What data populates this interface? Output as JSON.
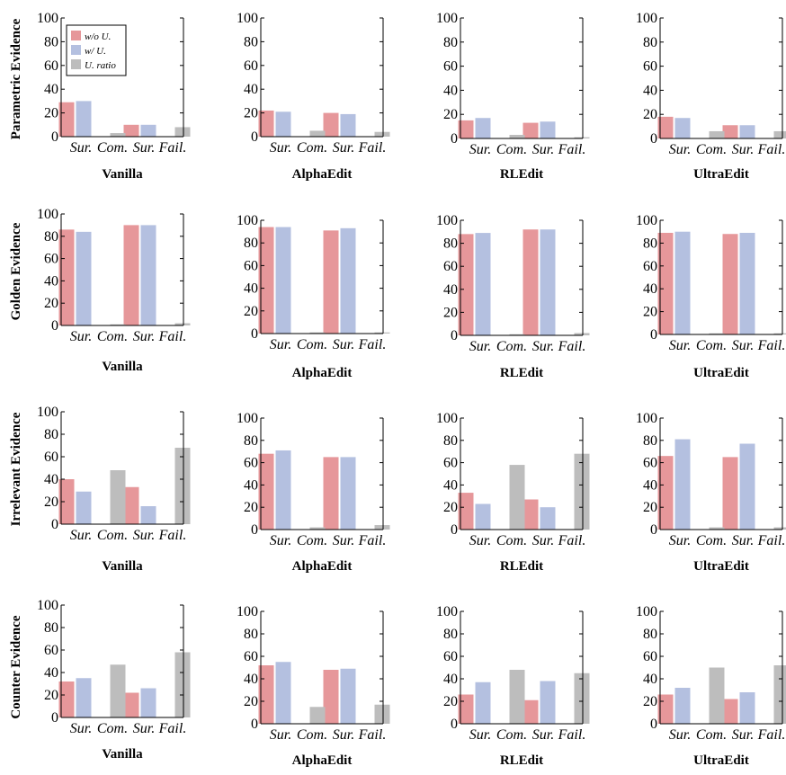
{
  "figure": {
    "rows": [
      "Parametric Evidence",
      "Golden Evidence",
      "Irrelevant Evidence",
      "Counter Evidence"
    ],
    "columns": [
      "Vanilla",
      "AlphaEdit",
      "RLEdit",
      "UltraEdit"
    ]
  },
  "legend": {
    "placement": "top-left",
    "items": [
      {
        "label": "w/o U.",
        "color": "#e6979a"
      },
      {
        "label": "w/ U.",
        "color": "#b4c0e0"
      },
      {
        "label": "U. ratio",
        "color": "#bdbdbd"
      }
    ]
  },
  "chart_data": [
    {
      "type": "bar",
      "row": "Parametric Evidence",
      "title": "Vanilla",
      "categories": [
        "Sur.",
        "Com.",
        "Sur.",
        "Fail."
      ],
      "ylim": [
        0,
        100
      ],
      "yticks": [
        0,
        20,
        40,
        60,
        80,
        100
      ],
      "series": [
        {
          "name": "w/o U.",
          "values": [
            29,
            0,
            10,
            0
          ]
        },
        {
          "name": "w/ U.",
          "values": [
            30,
            0,
            10,
            0
          ]
        },
        {
          "name": "U. ratio",
          "values": [
            0,
            3,
            0,
            8
          ]
        }
      ]
    },
    {
      "type": "bar",
      "row": "Parametric Evidence",
      "title": "AlphaEdit",
      "categories": [
        "Sur.",
        "Com.",
        "Sur.",
        "Fail."
      ],
      "ylim": [
        0,
        100
      ],
      "yticks": [
        0,
        20,
        40,
        60,
        80,
        100
      ],
      "series": [
        {
          "name": "w/o U.",
          "values": [
            22,
            0,
            20,
            0
          ]
        },
        {
          "name": "w/ U.",
          "values": [
            21,
            0,
            19,
            0
          ]
        },
        {
          "name": "U. ratio",
          "values": [
            0,
            5,
            0,
            4
          ]
        }
      ]
    },
    {
      "type": "bar",
      "row": "Parametric Evidence",
      "title": "RLEdit",
      "categories": [
        "Sur.",
        "Com.",
        "Sur.",
        "Fail."
      ],
      "ylim": [
        0,
        100
      ],
      "yticks": [
        0,
        20,
        40,
        60,
        80,
        100
      ],
      "series": [
        {
          "name": "w/o U.",
          "values": [
            15,
            0,
            13,
            0
          ]
        },
        {
          "name": "w/ U.",
          "values": [
            17,
            0,
            14,
            0
          ]
        },
        {
          "name": "U. ratio",
          "values": [
            0,
            3,
            0,
            1
          ]
        }
      ]
    },
    {
      "type": "bar",
      "row": "Parametric Evidence",
      "title": "UltraEdit",
      "categories": [
        "Sur.",
        "Com.",
        "Sur.",
        "Fail."
      ],
      "ylim": [
        0,
        100
      ],
      "yticks": [
        0,
        20,
        40,
        60,
        80,
        100
      ],
      "series": [
        {
          "name": "w/o U.",
          "values": [
            18,
            0,
            11,
            0
          ]
        },
        {
          "name": "w/ U.",
          "values": [
            17,
            0,
            11,
            0
          ]
        },
        {
          "name": "U. ratio",
          "values": [
            0,
            6,
            0,
            6
          ]
        }
      ]
    },
    {
      "type": "bar",
      "row": "Golden Evidence",
      "title": "Vanilla",
      "categories": [
        "Sur.",
        "Com.",
        "Sur.",
        "Fail."
      ],
      "ylim": [
        0,
        100
      ],
      "yticks": [
        0,
        20,
        40,
        60,
        80,
        100
      ],
      "series": [
        {
          "name": "w/o U.",
          "values": [
            86,
            0,
            90,
            0
          ]
        },
        {
          "name": "w/ U.",
          "values": [
            84,
            0,
            90,
            0
          ]
        },
        {
          "name": "U. ratio",
          "values": [
            0,
            1,
            0,
            2
          ]
        }
      ]
    },
    {
      "type": "bar",
      "row": "Golden Evidence",
      "title": "AlphaEdit",
      "categories": [
        "Sur.",
        "Com.",
        "Sur.",
        "Fail."
      ],
      "ylim": [
        0,
        100
      ],
      "yticks": [
        0,
        20,
        40,
        60,
        80,
        100
      ],
      "series": [
        {
          "name": "w/o U.",
          "values": [
            94,
            0,
            91,
            0
          ]
        },
        {
          "name": "w/ U.",
          "values": [
            94,
            0,
            93,
            0
          ]
        },
        {
          "name": "U. ratio",
          "values": [
            0,
            1,
            0,
            1
          ]
        }
      ]
    },
    {
      "type": "bar",
      "row": "Golden Evidence",
      "title": "RLEdit",
      "categories": [
        "Sur.",
        "Com.",
        "Sur.",
        "Fail."
      ],
      "ylim": [
        0,
        100
      ],
      "yticks": [
        0,
        20,
        40,
        60,
        80,
        100
      ],
      "series": [
        {
          "name": "w/o U.",
          "values": [
            88,
            0,
            92,
            0
          ]
        },
        {
          "name": "w/ U.",
          "values": [
            89,
            0,
            92,
            0
          ]
        },
        {
          "name": "U. ratio",
          "values": [
            0,
            1,
            0,
            2
          ]
        }
      ]
    },
    {
      "type": "bar",
      "row": "Golden Evidence",
      "title": "UltraEdit",
      "categories": [
        "Sur.",
        "Com.",
        "Sur.",
        "Fail."
      ],
      "ylim": [
        0,
        100
      ],
      "yticks": [
        0,
        20,
        40,
        60,
        80,
        100
      ],
      "series": [
        {
          "name": "w/o U.",
          "values": [
            89,
            0,
            88,
            0
          ]
        },
        {
          "name": "w/ U.",
          "values": [
            90,
            0,
            89,
            0
          ]
        },
        {
          "name": "U. ratio",
          "values": [
            0,
            1,
            0,
            1
          ]
        }
      ]
    },
    {
      "type": "bar",
      "row": "Irrelevant Evidence",
      "title": "Vanilla",
      "categories": [
        "Sur.",
        "Com.",
        "Sur.",
        "Fail."
      ],
      "ylim": [
        0,
        100
      ],
      "yticks": [
        0,
        20,
        40,
        60,
        80,
        100
      ],
      "series": [
        {
          "name": "w/o U.",
          "values": [
            40,
            0,
            33,
            0
          ]
        },
        {
          "name": "w/ U.",
          "values": [
            29,
            0,
            16,
            0
          ]
        },
        {
          "name": "U. ratio",
          "values": [
            0,
            48,
            0,
            68
          ]
        }
      ]
    },
    {
      "type": "bar",
      "row": "Irrelevant Evidence",
      "title": "AlphaEdit",
      "categories": [
        "Sur.",
        "Com.",
        "Sur.",
        "Fail."
      ],
      "ylim": [
        0,
        100
      ],
      "yticks": [
        0,
        20,
        40,
        60,
        80,
        100
      ],
      "series": [
        {
          "name": "w/o U.",
          "values": [
            68,
            0,
            65,
            0
          ]
        },
        {
          "name": "w/ U.",
          "values": [
            71,
            0,
            65,
            0
          ]
        },
        {
          "name": "U. ratio",
          "values": [
            0,
            2,
            0,
            4
          ]
        }
      ]
    },
    {
      "type": "bar",
      "row": "Irrelevant Evidence",
      "title": "RLEdit",
      "categories": [
        "Sur.",
        "Com.",
        "Sur.",
        "Fail."
      ],
      "ylim": [
        0,
        100
      ],
      "yticks": [
        0,
        20,
        40,
        60,
        80,
        100
      ],
      "series": [
        {
          "name": "w/o U.",
          "values": [
            33,
            0,
            27,
            0
          ]
        },
        {
          "name": "w/ U.",
          "values": [
            23,
            0,
            20,
            0
          ]
        },
        {
          "name": "U. ratio",
          "values": [
            0,
            58,
            0,
            68
          ]
        }
      ]
    },
    {
      "type": "bar",
      "row": "Irrelevant Evidence",
      "title": "UltraEdit",
      "categories": [
        "Sur.",
        "Com.",
        "Sur.",
        "Fail."
      ],
      "ylim": [
        0,
        100
      ],
      "yticks": [
        0,
        20,
        40,
        60,
        80,
        100
      ],
      "series": [
        {
          "name": "w/o U.",
          "values": [
            66,
            0,
            65,
            0
          ]
        },
        {
          "name": "w/ U.",
          "values": [
            81,
            0,
            77,
            0
          ]
        },
        {
          "name": "U. ratio",
          "values": [
            0,
            2,
            0,
            2
          ]
        }
      ]
    },
    {
      "type": "bar",
      "row": "Counter Evidence",
      "title": "Vanilla",
      "categories": [
        "Sur.",
        "Com.",
        "Sur.",
        "Fail."
      ],
      "ylim": [
        0,
        100
      ],
      "yticks": [
        0,
        20,
        40,
        60,
        80,
        100
      ],
      "series": [
        {
          "name": "w/o U.",
          "values": [
            32,
            0,
            22,
            0
          ]
        },
        {
          "name": "w/ U.",
          "values": [
            35,
            0,
            26,
            0
          ]
        },
        {
          "name": "U. ratio",
          "values": [
            0,
            47,
            0,
            58
          ]
        }
      ]
    },
    {
      "type": "bar",
      "row": "Counter Evidence",
      "title": "AlphaEdit",
      "categories": [
        "Sur.",
        "Com.",
        "Sur.",
        "Fail."
      ],
      "ylim": [
        0,
        100
      ],
      "yticks": [
        0,
        20,
        40,
        60,
        80,
        100
      ],
      "series": [
        {
          "name": "w/o U.",
          "values": [
            52,
            0,
            48,
            0
          ]
        },
        {
          "name": "w/ U.",
          "values": [
            55,
            0,
            49,
            0
          ]
        },
        {
          "name": "U. ratio",
          "values": [
            0,
            15,
            0,
            17
          ]
        }
      ]
    },
    {
      "type": "bar",
      "row": "Counter Evidence",
      "title": "RLEdit",
      "categories": [
        "Sur.",
        "Com.",
        "Sur.",
        "Fail."
      ],
      "ylim": [
        0,
        100
      ],
      "yticks": [
        0,
        20,
        40,
        60,
        80,
        100
      ],
      "series": [
        {
          "name": "w/o U.",
          "values": [
            26,
            0,
            21,
            0
          ]
        },
        {
          "name": "w/ U.",
          "values": [
            37,
            0,
            38,
            0
          ]
        },
        {
          "name": "U. ratio",
          "values": [
            0,
            48,
            0,
            45
          ]
        }
      ]
    },
    {
      "type": "bar",
      "row": "Counter Evidence",
      "title": "UltraEdit",
      "categories": [
        "Sur.",
        "Com.",
        "Sur.",
        "Fail."
      ],
      "ylim": [
        0,
        100
      ],
      "yticks": [
        0,
        20,
        40,
        60,
        80,
        100
      ],
      "series": [
        {
          "name": "w/o U.",
          "values": [
            26,
            0,
            22,
            0
          ]
        },
        {
          "name": "w/ U.",
          "values": [
            32,
            0,
            28,
            0
          ]
        },
        {
          "name": "U. ratio",
          "values": [
            0,
            50,
            0,
            52
          ]
        }
      ]
    }
  ]
}
